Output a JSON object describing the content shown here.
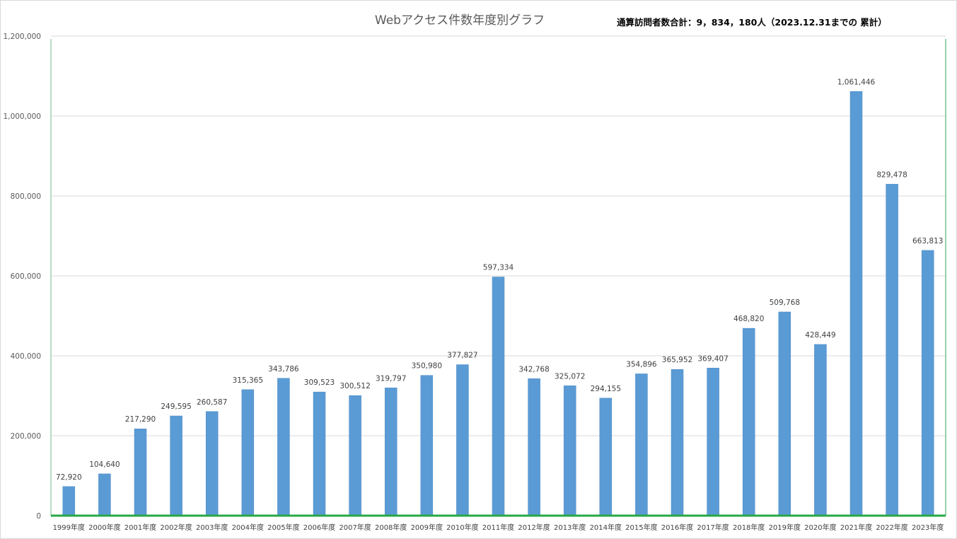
{
  "colors": {
    "bar": "#5b9bd5",
    "bar_edge": "#4a8ac4",
    "grid": "#d9d9d9",
    "frame_left": "#9fd3b0",
    "frame_right": "#73c38c",
    "baseline": "#27a844"
  },
  "chart_data": {
    "type": "bar",
    "title": "Webアクセス件数年度別グラフ",
    "annotation": "通算訪問者数合計：9，834，180人（2023.12.31までの 累計）",
    "categories": [
      "1999年度",
      "2000年度",
      "2001年度",
      "2002年度",
      "2003年度",
      "2004年度",
      "2005年度",
      "2006年度",
      "2007年度",
      "2008年度",
      "2009年度",
      "2010年度",
      "2011年度",
      "2012年度",
      "2013年度",
      "2014年度",
      "2015年度",
      "2016年度",
      "2017年度",
      "2018年度",
      "2019年度",
      "2020年度",
      "2021年度",
      "2022年度",
      "2023年度"
    ],
    "values": [
      72920,
      104640,
      217290,
      249595,
      260587,
      315365,
      343786,
      309523,
      300512,
      319797,
      350980,
      377827,
      597334,
      342768,
      325072,
      294155,
      354896,
      365952,
      369407,
      468820,
      509768,
      428449,
      1061446,
      829478,
      663813
    ],
    "value_labels": [
      "72,920",
      "104,640",
      "217,290",
      "249,595",
      "260,587",
      "315,365",
      "343,786",
      "309,523",
      "300,512",
      "319,797",
      "350,980",
      "377,827",
      "597,334",
      "342,768",
      "325,072",
      "294,155",
      "354,896",
      "365,952",
      "369,407",
      "468,820",
      "509,768",
      "428,449",
      "1,061,446",
      "829,478",
      "663,813"
    ],
    "y_ticks": [
      0,
      200000,
      400000,
      600000,
      800000,
      1000000,
      1200000
    ],
    "y_tick_labels": [
      "0",
      "200,000",
      "400,000",
      "600,000",
      "800,000",
      "1,000,000",
      "1,200,000"
    ],
    "ylim": [
      0,
      1200000
    ],
    "grid": true,
    "legend": "none"
  }
}
